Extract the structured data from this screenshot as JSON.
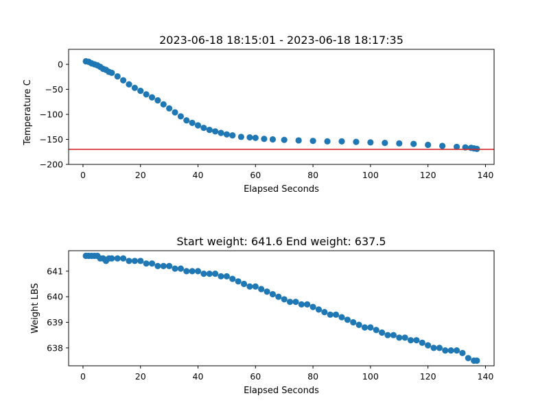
{
  "chart_data": [
    {
      "type": "scatter",
      "title": "2023-06-18 18:15:01 - 2023-06-18 18:17:35",
      "xlabel": "Elapsed Seconds",
      "ylabel": "Temperature C",
      "xlim": [
        -5,
        143
      ],
      "ylim": [
        -200,
        30
      ],
      "xticks": [
        0,
        20,
        40,
        60,
        80,
        100,
        120,
        140
      ],
      "yticks": [
        0,
        -50,
        -100,
        -150,
        -200
      ],
      "ytick_labels": [
        "0",
        "−50",
        "−100",
        "−150",
        "−200"
      ],
      "grid": false,
      "marker_color": "#1f77b4",
      "reference_line": {
        "y": -170,
        "color": "#d62728"
      },
      "series": [
        {
          "x": [
            1,
            2,
            3,
            4,
            5,
            6,
            7,
            8,
            9,
            10,
            12,
            14,
            16,
            18,
            20,
            22,
            24,
            26,
            28,
            30,
            32,
            34,
            36,
            38,
            40,
            42,
            44,
            46,
            48,
            50,
            52,
            55,
            58,
            60,
            63,
            66,
            70,
            75,
            80,
            85,
            90,
            95,
            100,
            105,
            110,
            115,
            120,
            125,
            130,
            133,
            135,
            136,
            137
          ],
          "y": [
            6,
            5,
            2,
            0,
            -2,
            -5,
            -9,
            -11,
            -15,
            -17,
            -24,
            -32,
            -40,
            -47,
            -53,
            -60,
            -66,
            -72,
            -80,
            -88,
            -96,
            -104,
            -112,
            -117,
            -122,
            -127,
            -131,
            -134,
            -137,
            -140,
            -142,
            -145,
            -146,
            -147,
            -149,
            -150,
            -151,
            -152,
            -153,
            -154,
            -154,
            -155,
            -156,
            -157,
            -158,
            -159,
            -161,
            -163,
            -165,
            -166,
            -167,
            -168,
            -169
          ]
        }
      ]
    },
    {
      "type": "scatter",
      "title": "Start weight: 641.6 End weight: 637.5",
      "xlabel": "Elapsed Seconds",
      "ylabel": "Weight LBS",
      "xlim": [
        -5,
        143
      ],
      "ylim": [
        637.3,
        641.8
      ],
      "xticks": [
        0,
        20,
        40,
        60,
        80,
        100,
        120,
        140
      ],
      "yticks": [
        638,
        639,
        640,
        641
      ],
      "grid": false,
      "marker_color": "#1f77b4",
      "series": [
        {
          "x": [
            1,
            2,
            3,
            4,
            5,
            6,
            7,
            8,
            9,
            10,
            12,
            14,
            16,
            18,
            20,
            22,
            24,
            26,
            28,
            30,
            32,
            34,
            36,
            38,
            40,
            42,
            44,
            46,
            48,
            50,
            52,
            54,
            56,
            58,
            60,
            62,
            64,
            66,
            68,
            70,
            72,
            74,
            76,
            78,
            80,
            82,
            84,
            86,
            88,
            90,
            92,
            94,
            96,
            98,
            100,
            102,
            104,
            106,
            108,
            110,
            112,
            114,
            116,
            118,
            120,
            122,
            124,
            126,
            128,
            130,
            132,
            134,
            136,
            137
          ],
          "y": [
            641.6,
            641.6,
            641.6,
            641.6,
            641.6,
            641.5,
            641.5,
            641.4,
            641.5,
            641.5,
            641.5,
            641.5,
            641.4,
            641.4,
            641.4,
            641.3,
            641.3,
            641.2,
            641.2,
            641.2,
            641.1,
            641.1,
            641.0,
            641.0,
            641.0,
            640.9,
            640.9,
            640.9,
            640.8,
            640.8,
            640.7,
            640.6,
            640.5,
            640.4,
            640.4,
            640.3,
            640.2,
            640.1,
            640.0,
            639.9,
            639.8,
            639.8,
            639.7,
            639.7,
            639.6,
            639.5,
            639.4,
            639.3,
            639.3,
            639.2,
            639.1,
            639.0,
            638.9,
            638.8,
            638.8,
            638.7,
            638.6,
            638.5,
            638.5,
            638.4,
            638.4,
            638.3,
            638.3,
            638.2,
            638.1,
            638.0,
            638.0,
            637.9,
            637.9,
            637.9,
            637.8,
            637.6,
            637.5,
            637.5
          ]
        }
      ]
    }
  ]
}
